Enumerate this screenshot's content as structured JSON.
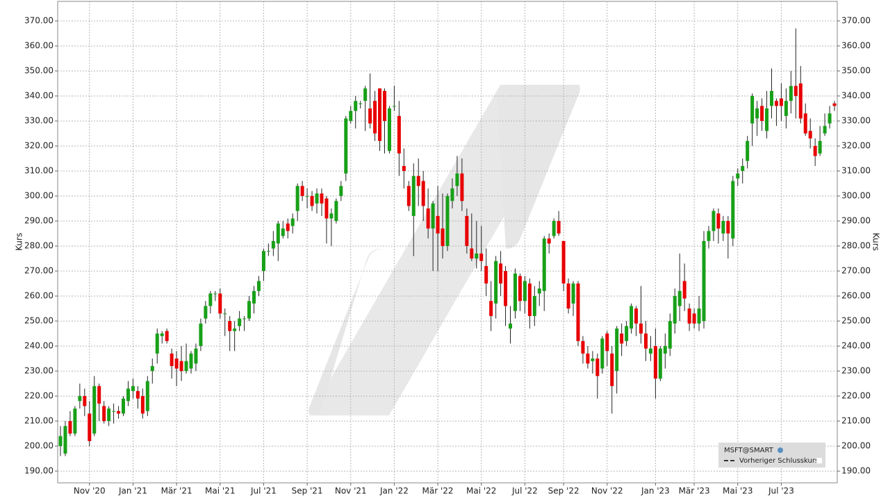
{
  "chart_data": {
    "type": "candlestick",
    "y_label": "Kurs",
    "ylim": [
      185.3,
      377.8
    ],
    "yticks": [
      {
        "value": 190,
        "label": "190.00"
      },
      {
        "value": 200,
        "label": "200.00"
      },
      {
        "value": 210,
        "label": "210.00"
      },
      {
        "value": 220,
        "label": "220.00"
      },
      {
        "value": 230,
        "label": "230.00"
      },
      {
        "value": 240,
        "label": "240.00"
      },
      {
        "value": 250,
        "label": "250.00"
      },
      {
        "value": 260,
        "label": "260.00"
      },
      {
        "value": 270,
        "label": "270.00"
      },
      {
        "value": 280,
        "label": "280.00"
      },
      {
        "value": 290,
        "label": "290.00"
      },
      {
        "value": 300,
        "label": "300.00"
      },
      {
        "value": 310,
        "label": "310.00"
      },
      {
        "value": 320,
        "label": "320.00"
      },
      {
        "value": 330,
        "label": "330.00"
      },
      {
        "value": 340,
        "label": "340.00"
      },
      {
        "value": 350,
        "label": "350.00"
      },
      {
        "value": 360,
        "label": "360.00"
      },
      {
        "value": 370,
        "label": "370.00"
      }
    ],
    "grid": true,
    "categories": [
      null,
      null,
      null,
      null,
      null,
      null,
      "Nov '20",
      null,
      null,
      null,
      null,
      null,
      null,
      null,
      null,
      "Jan '21",
      null,
      null,
      null,
      null,
      null,
      null,
      null,
      null,
      "Mär '21",
      null,
      null,
      null,
      null,
      null,
      null,
      null,
      null,
      "Mai '21",
      null,
      null,
      null,
      null,
      null,
      null,
      null,
      null,
      "Jul '21",
      null,
      null,
      null,
      null,
      null,
      null,
      null,
      null,
      "Sep '21",
      null,
      null,
      null,
      null,
      null,
      null,
      null,
      null,
      "Nov '21",
      null,
      null,
      null,
      null,
      null,
      null,
      null,
      null,
      "Jan '22",
      null,
      null,
      null,
      null,
      null,
      null,
      null,
      null,
      "Mär '22",
      null,
      null,
      null,
      null,
      null,
      null,
      null,
      null,
      "Mai '22",
      null,
      null,
      null,
      null,
      null,
      null,
      null,
      null,
      "Jul '22",
      null,
      null,
      null,
      null,
      null,
      null,
      null,
      "Sep '22",
      null,
      null,
      null,
      null,
      null,
      null,
      null,
      null,
      "Nov '22",
      null,
      null,
      null,
      null,
      null,
      null,
      null,
      null,
      null,
      "Jan '23",
      null,
      null,
      null,
      null,
      null,
      null,
      null,
      "Mär '23",
      null,
      null,
      null,
      null,
      null,
      null,
      null,
      null,
      "Mai '23",
      null,
      null,
      null,
      null,
      null,
      null,
      null,
      null,
      "Jul '23",
      null,
      null,
      null,
      null,
      null,
      null,
      null,
      null,
      null,
      null,
      null
    ],
    "series": [
      {
        "name": "MSFT@SMART",
        "up_color": "#18a018",
        "down_color": "#e80000",
        "open": [
          200,
          197,
          210,
          205,
          218,
          220,
          213,
          205,
          224,
          216,
          210,
          214,
          214,
          213,
          218,
          222,
          222,
          220,
          214,
          230,
          237,
          244,
          246,
          237,
          235,
          234,
          230,
          231,
          233,
          240,
          251,
          256,
          261,
          261,
          253,
          250,
          246,
          248,
          251,
          251,
          257,
          262,
          270,
          278,
          279,
          281,
          284,
          289,
          288,
          294,
          304,
          300,
          300,
          297,
          301,
          299,
          291,
          290,
          300,
          309,
          330,
          334,
          337,
          338,
          335,
          338,
          343,
          342,
          318,
          336,
          332,
          312,
          304,
          292,
          308,
          306,
          295,
          287,
          292,
          287,
          280,
          298,
          304,
          309,
          292,
          279,
          275,
          277,
          272,
          258,
          257,
          273,
          270,
          247,
          254,
          268,
          258,
          265,
          252,
          261,
          262,
          283,
          284,
          290,
          282,
          265,
          257,
          265,
          242,
          237,
          234,
          235,
          231,
          245,
          237,
          230,
          245,
          242,
          247,
          255,
          249,
          245,
          237,
          240,
          227,
          237,
          239,
          249,
          256,
          266,
          255,
          253,
          249,
          250,
          282,
          286,
          293,
          285,
          290,
          283,
          307,
          310,
          314,
          329,
          331,
          336,
          326,
          336,
          338,
          339,
          332,
          338,
          344,
          345,
          333,
          326,
          320,
          317,
          325,
          329,
          337
        ],
        "high": [
          208,
          210,
          214,
          216,
          225,
          223,
          218,
          228,
          225,
          218,
          216,
          217,
          216,
          220,
          226,
          227,
          224,
          223,
          228,
          235,
          247,
          246,
          247,
          239,
          238,
          240,
          241,
          238,
          241,
          251,
          258,
          262,
          262,
          263,
          255,
          252,
          250,
          254,
          252,
          260,
          264,
          268,
          279,
          281,
          286,
          290,
          290,
          291,
          293,
          305,
          306,
          303,
          302,
          303,
          303,
          300,
          295,
          299,
          306,
          332,
          336,
          340,
          338,
          344,
          349,
          342,
          343,
          343,
          336,
          344,
          338,
          319,
          306,
          313,
          315,
          310,
          303,
          298,
          304,
          301,
          301,
          307,
          316,
          315,
          295,
          293,
          290,
          288,
          279,
          266,
          276,
          278,
          272,
          256,
          271,
          269,
          268,
          267,
          264,
          266,
          284,
          285,
          291,
          294,
          282,
          267,
          266,
          266,
          244,
          240,
          238,
          237,
          244,
          246,
          240,
          248,
          249,
          250,
          257,
          256,
          264,
          250,
          244,
          247,
          240,
          245,
          253,
          263,
          277,
          273,
          257,
          255,
          260,
          286,
          288,
          295,
          295,
          292,
          292,
          308,
          311,
          315,
          324,
          341,
          338,
          339,
          342,
          351,
          339,
          345,
          343,
          350,
          367,
          352,
          337,
          331,
          323,
          328,
          333,
          336,
          338
        ],
        "low": [
          196,
          196,
          204,
          204,
          215,
          212,
          200,
          204,
          210,
          209,
          208,
          209,
          211,
          212,
          216,
          219,
          215,
          211,
          212,
          225,
          233,
          241,
          241,
          227,
          224,
          226,
          229,
          229,
          230,
          238,
          249,
          253,
          258,
          251,
          244,
          238,
          238,
          246,
          246,
          250,
          253,
          260,
          266,
          276,
          276,
          274,
          283,
          283,
          285,
          290,
          298,
          295,
          294,
          293,
          292,
          281,
          280,
          289,
          298,
          306,
          329,
          327,
          335,
          326,
          327,
          322,
          318,
          317,
          317,
          334,
          308,
          303,
          294,
          276,
          296,
          290,
          283,
          270,
          270,
          275,
          278,
          295,
          300,
          294,
          277,
          274,
          271,
          270,
          260,
          246,
          251,
          260,
          248,
          241,
          251,
          254,
          253,
          247,
          248,
          256,
          254,
          277,
          283,
          284,
          262,
          253,
          252,
          240,
          233,
          231,
          229,
          219,
          229,
          232,
          213,
          221,
          236,
          240,
          245,
          244,
          241,
          234,
          234,
          219,
          226,
          231,
          236,
          245,
          250,
          254,
          246,
          247,
          246,
          247,
          279,
          282,
          281,
          282,
          275,
          280,
          304,
          305,
          311,
          320,
          324,
          326,
          323,
          331,
          328,
          330,
          327,
          333,
          331,
          329,
          324,
          319,
          312,
          316,
          324,
          327,
          334
        ],
        "close": [
          204,
          208,
          205,
          215,
          220,
          216,
          202,
          224,
          217,
          210,
          215,
          214,
          213,
          219,
          223,
          224,
          219,
          213,
          226,
          232,
          245,
          245,
          242,
          232,
          231,
          230,
          234,
          237,
          239,
          249,
          256,
          261,
          261,
          253,
          253,
          246,
          247,
          251,
          251,
          258,
          262,
          266,
          278,
          278,
          282,
          289,
          287,
          286,
          291,
          304,
          300,
          300,
          296,
          301,
          297,
          291,
          293,
          298,
          304,
          331,
          334,
          338,
          337,
          343,
          329,
          325,
          322,
          330,
          335,
          336,
          317,
          310,
          296,
          308,
          304,
          296,
          287,
          297,
          285,
          280,
          300,
          303,
          309,
          298,
          280,
          275,
          277,
          274,
          265,
          252,
          274,
          265,
          256,
          249,
          269,
          258,
          266,
          252,
          260,
          263,
          283,
          281,
          290,
          285,
          265,
          255,
          265,
          242,
          237,
          233,
          235,
          228,
          243,
          238,
          224,
          247,
          241,
          248,
          256,
          249,
          245,
          239,
          239,
          227,
          239,
          240,
          250,
          260,
          262,
          259,
          249,
          249,
          255,
          282,
          286,
          294,
          287,
          290,
          285,
          306,
          309,
          312,
          322,
          340,
          335,
          330,
          335,
          342,
          336,
          336,
          338,
          344,
          340,
          331,
          325,
          323,
          316,
          322,
          328,
          333,
          336
        ]
      }
    ],
    "previous_close": {
      "name": "Vorheriger Schlusskurs",
      "color": "#333333"
    }
  }
}
